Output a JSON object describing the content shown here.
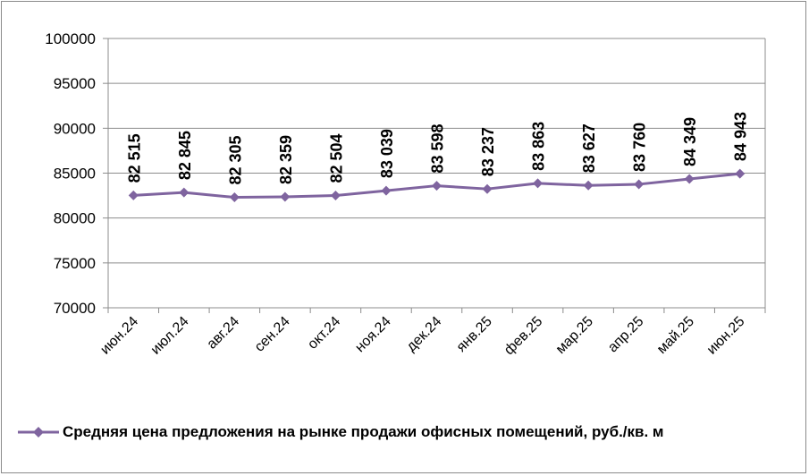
{
  "chart_data": {
    "type": "line",
    "categories": [
      "июн.24",
      "июл.24",
      "авг.24",
      "сен.24",
      "окт.24",
      "ноя.24",
      "дек.24",
      "янв.25",
      "фев.25",
      "мар.25",
      "апр.25",
      "май.25",
      "июн.25"
    ],
    "series": [
      {
        "name": "Средняя цена предложения на рынке продажи офисных помещений,  руб./кв. м",
        "values": [
          82515,
          82845,
          82305,
          82359,
          82504,
          83039,
          83598,
          83237,
          83863,
          83627,
          83760,
          84349,
          84943
        ],
        "labels": [
          "82 515",
          "82 845",
          "82 305",
          "82 359",
          "82 504",
          "83 039",
          "83 598",
          "83 237",
          "83 863",
          "83 627",
          "83 760",
          "84 349",
          "84 943"
        ],
        "color": "#7F649F",
        "marker": "diamond"
      }
    ],
    "y_ticks": [
      "100000",
      "95000",
      "90000",
      "85000",
      "80000",
      "75000",
      "70000"
    ],
    "ylim": [
      70000,
      100000
    ],
    "title": "",
    "xlabel": "",
    "ylabel": "",
    "grid": true,
    "legend_position": "bottom"
  }
}
